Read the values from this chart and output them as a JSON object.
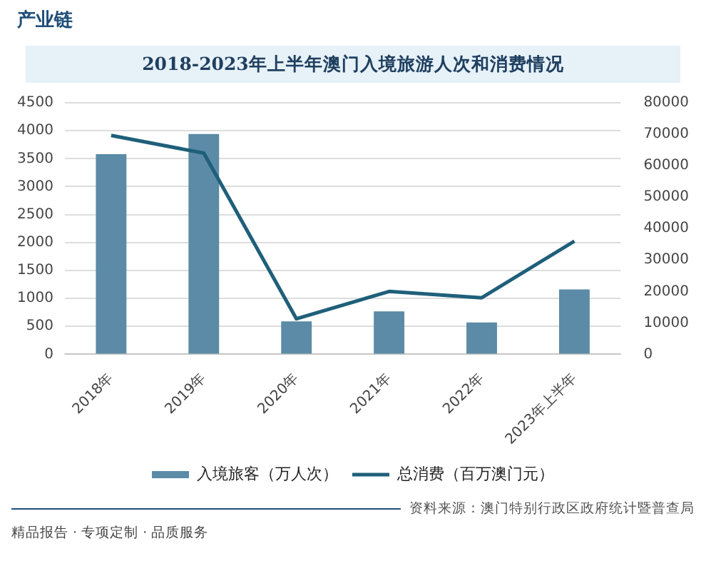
{
  "chart_data": {
    "type": "bar",
    "title": "2018-2023年上半年澳门入境旅游人次和消费情况",
    "categories": [
      "2018年",
      "2019年",
      "2020年",
      "2021年",
      "2022年",
      "2023年上半年"
    ],
    "series": [
      {
        "name": "入境旅客（万人次）",
        "color": "#5b8ba6",
        "values": [
          3580,
          3940,
          590,
          770,
          570,
          1160
        ]
      },
      {
        "name": "总消费（百万澳门元）",
        "type": "line",
        "axis": "y2",
        "color": "#1f5f7a",
        "values": [
          69600,
          64000,
          11300,
          20000,
          18000,
          36000
        ]
      }
    ],
    "ylim": [
      0,
      4500
    ],
    "yticks": [
      0,
      500,
      1000,
      1500,
      2000,
      2500,
      3000,
      3500,
      4000,
      4500
    ],
    "y2lim": [
      0,
      80000
    ],
    "y2ticks": [
      0,
      10000,
      20000,
      30000,
      40000,
      50000,
      60000,
      70000,
      80000
    ],
    "grid": "y",
    "legend": "bottom",
    "marker": "none",
    "line_style": "solid",
    "annotations": [
      "产业链",
      "资料来源：澳门特别行政区政府统计暨普查局",
      "精品报告 · 专项定制 · 品质服务"
    ]
  }
}
